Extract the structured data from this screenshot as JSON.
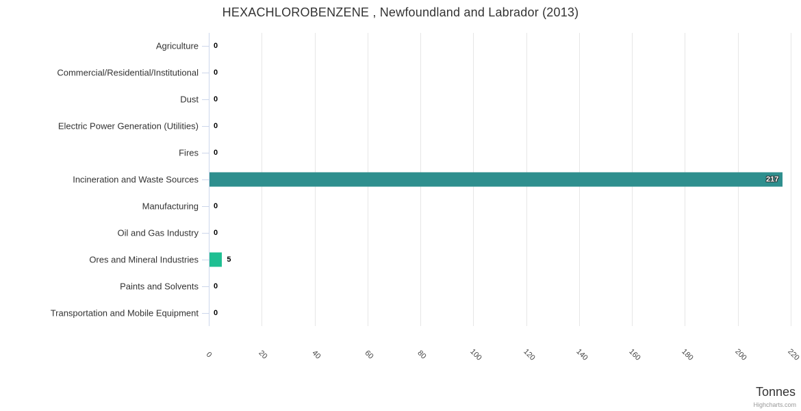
{
  "title": "HEXACHLOROBENZENE , Newfoundland and Labrador (2013)",
  "unit_label": "Tonnes",
  "credits": "Highcharts.com",
  "chart_data": {
    "type": "bar",
    "orientation": "horizontal",
    "title": "HEXACHLOROBENZENE , Newfoundland and Labrador (2013)",
    "xlabel": "Tonnes",
    "ylabel": "",
    "categories": [
      "Agriculture",
      "Commercial/Residential/Institutional",
      "Dust",
      "Electric Power Generation (Utilities)",
      "Fires",
      "Incineration and Waste Sources",
      "Manufacturing",
      "Oil and Gas Industry",
      "Ores and Mineral Industries",
      "Paints and Solvents",
      "Transportation and Mobile Equipment"
    ],
    "values": [
      0,
      0,
      0,
      0,
      0,
      217,
      0,
      0,
      5,
      0,
      0
    ],
    "data_labels": [
      "0",
      "0",
      "0",
      "0",
      "0",
      "217",
      "0",
      "0",
      "5",
      "0",
      "0"
    ],
    "point_colors": [
      "#2e8f8e",
      "#2e8f8e",
      "#2e8f8e",
      "#2e8f8e",
      "#2e8f8e",
      "#2e8f8e",
      "#2e8f8e",
      "#2e8f8e",
      "#1fbf92",
      "#2e8f8e",
      "#2e8f8e"
    ],
    "value_axis_ticks": [
      0,
      20,
      40,
      60,
      80,
      100,
      120,
      140,
      160,
      180,
      200,
      220
    ],
    "xlim": [
      0,
      220
    ],
    "grid": true,
    "legend": false
  },
  "colors": {
    "bar_teal": "#2e8f8e",
    "bar_green": "#1fbf92",
    "grid_line": "#e6e6e6",
    "axis_line": "#ccd6eb",
    "title_text": "#333333",
    "label_text": "#333333",
    "tick_text": "#444444",
    "credits_text": "#999999"
  }
}
